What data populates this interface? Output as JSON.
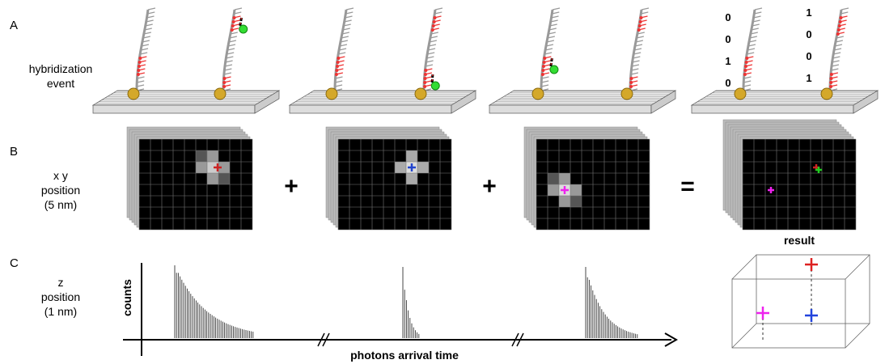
{
  "panels": [
    {
      "letter": "A",
      "label_lines": [
        "hybridization",
        "event"
      ]
    },
    {
      "letter": "B",
      "label_lines": [
        "x y",
        "position",
        "(5 nm)"
      ]
    },
    {
      "letter": "C",
      "label_lines": [
        "z",
        "position",
        "(1 nm)"
      ]
    }
  ],
  "binary": {
    "left": [
      "0",
      "0",
      "1",
      "0"
    ],
    "right": [
      "1",
      "0",
      "0",
      "1"
    ]
  },
  "operators": [
    "+",
    "+",
    "="
  ],
  "result_label": "result",
  "axis": {
    "y_label": "counts",
    "x_label": "photons arrival time"
  }
}
